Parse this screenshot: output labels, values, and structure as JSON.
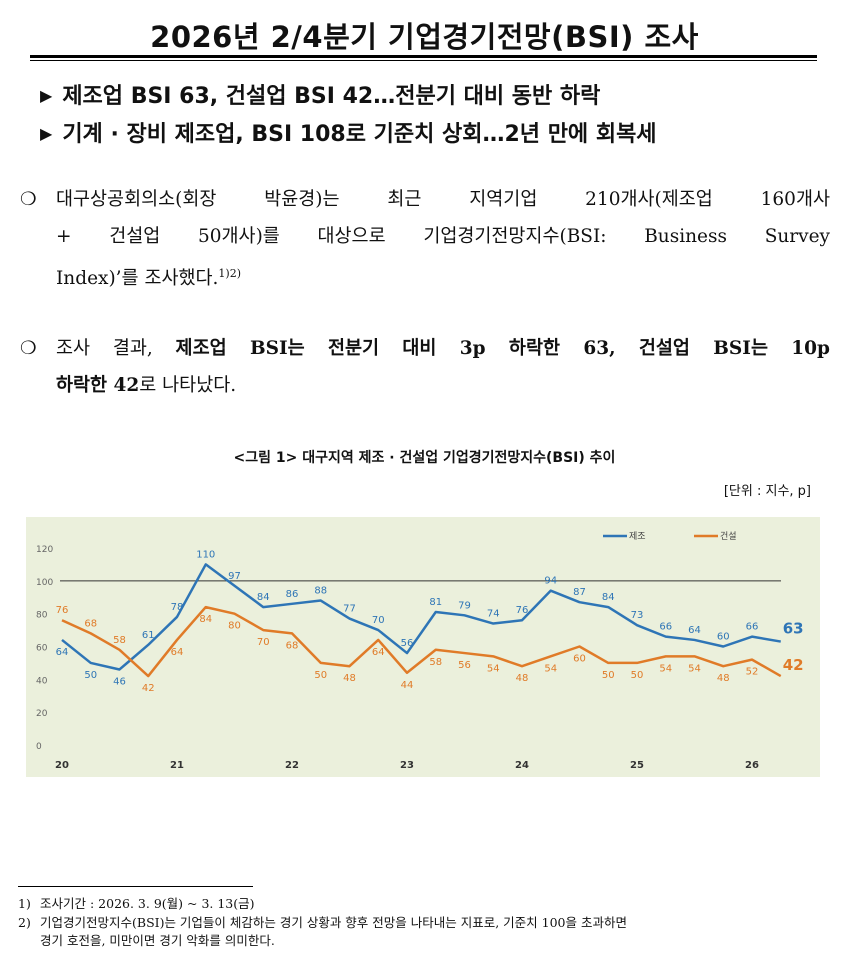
{
  "header": {
    "title": "2026년 2/4분기 기업경기전망(BSI) 조사",
    "subtitles": [
      "제조업 BSI 63, 건설업 BSI 42…전분기 대비 동반 하락",
      "기계 · 장비 제조업, BSI 108로 기준치 상회…2년 만에 회복세"
    ]
  },
  "paragraph1": {
    "bullet": "❍",
    "line1": "대구상공회의소(회장 박윤경)는 최근 지역기업 210개사(제조업 160개사",
    "line2": "+ 건설업 50개사)를 대상으로 기업경기전망지수(BSI: Business Survey",
    "line3": "Index)’를 조사했다.",
    "footnote_ref": "1)2)"
  },
  "paragraph2": {
    "bullet": "❍",
    "pre": "조사 결과, ",
    "bold1": "제조업 BSI는 전분기 대비 3p 하락한 63, 건설업 BSI는 10p",
    "bold2": "하락한 42",
    "post": "로 나타났다."
  },
  "figure": {
    "title": "<그림 1> 대구지역 제조 · 건설업 기업경기전망지수(BSI) 추이",
    "unit": "[단위 : 지수, p]"
  },
  "chart_data": {
    "type": "line",
    "x": [
      "20Q1",
      "20Q2",
      "20Q3",
      "20Q4",
      "21Q1",
      "21Q2",
      "21Q3",
      "21Q4",
      "22Q1",
      "22Q2",
      "22Q3",
      "22Q4",
      "23Q1",
      "23Q2",
      "23Q3",
      "23Q4",
      "24Q1",
      "24Q2",
      "24Q3",
      "24Q4",
      "25Q1",
      "25Q2",
      "25Q3",
      "25Q4",
      "26Q1",
      "26Q2"
    ],
    "x_tick_labels": [
      "20",
      "21",
      "22",
      "23",
      "24",
      "25",
      "26"
    ],
    "series": [
      {
        "name": "제조",
        "color": "#2e75b6",
        "values": [
          64,
          50,
          46,
          61,
          78,
          110,
          97,
          84,
          86,
          88,
          77,
          70,
          56,
          81,
          79,
          74,
          76,
          94,
          87,
          84,
          73,
          66,
          64,
          60,
          66,
          63
        ]
      },
      {
        "name": "건설",
        "color": "#e07b28",
        "values": [
          76,
          68,
          58,
          42,
          64,
          84,
          80,
          70,
          68,
          50,
          48,
          64,
          44,
          58,
          56,
          54,
          48,
          54,
          60,
          50,
          50,
          54,
          54,
          48,
          52,
          42
        ]
      }
    ],
    "y_ticks": [
      0,
      20,
      40,
      60,
      80,
      100,
      120
    ],
    "ylim": [
      0,
      120
    ],
    "reference_line": 100,
    "legend_position": "top-right",
    "grid": false,
    "last_labels": [
      "63",
      "42"
    ]
  },
  "footnotes": [
    {
      "num": "1)",
      "text": "조사기간 : 2026. 3. 9(월) ~ 3. 13(금)"
    },
    {
      "num": "2)",
      "text": "기업경기전망지수(BSI)는 기업들이 체감하는 경기 상황과 향후 전망을 나타내는 지표로, 기준치 100을 초과하면",
      "text2": "경기 호전을, 미만이면 경기 악화를 의미한다."
    }
  ]
}
